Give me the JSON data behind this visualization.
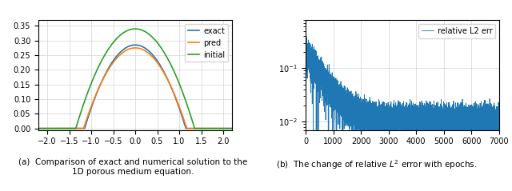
{
  "left_plot": {
    "xlim": [
      -2.2,
      2.2
    ],
    "ylim": [
      -0.005,
      0.37
    ],
    "yticks": [
      0.0,
      0.05,
      0.1,
      0.15,
      0.2,
      0.25,
      0.3,
      0.35
    ],
    "xticks": [
      -2.0,
      -1.5,
      -1.0,
      -0.5,
      0.0,
      0.5,
      1.0,
      1.5,
      2.0
    ],
    "exact_color": "#1f77b4",
    "pred_color": "#ff7f0e",
    "initial_color": "#2ca02c",
    "legend_labels": [
      "exact",
      "pred",
      "initial"
    ],
    "caption_left": "(a)  Comparison of exact and numerical solution to the\n1D porous medium equation.",
    "exact_support": 1.15,
    "initial_support": 1.35,
    "exact_peak": 0.285,
    "initial_peak": 0.34,
    "pred_peak": 0.275
  },
  "right_plot": {
    "xlim": [
      0,
      7000
    ],
    "ylim_log": [
      0.007,
      0.8
    ],
    "line_color": "#1f77b4",
    "legend_label": "relative L2 err",
    "caption_right": "(b)  The change of relative $L^2$ error with epochs.",
    "xticks": [
      0,
      1000,
      2000,
      3000,
      4000,
      5000,
      6000,
      7000
    ]
  }
}
